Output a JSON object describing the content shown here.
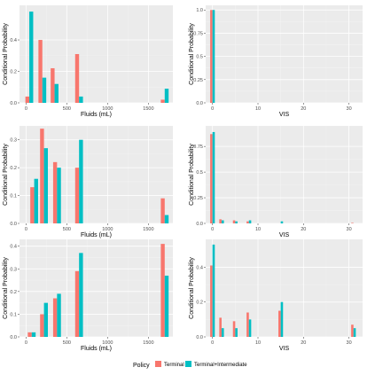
{
  "legend": {
    "title": "Policy",
    "items": [
      {
        "label": "Terminal",
        "color": "#F8766D"
      },
      {
        "label": "Terminal+Intermediate",
        "color": "#00BFC4"
      }
    ],
    "position": "bottom"
  },
  "chart_data": [
    {
      "type": "bar",
      "panel": "row1-left",
      "xlabel": "Fluids (mL)",
      "ylabel": "Conditional Probability",
      "xlim": [
        -80,
        1800
      ],
      "ylim": [
        0,
        0.62
      ],
      "xticks": [
        0,
        500,
        1000,
        1500
      ],
      "yticks": [
        0.0,
        0.2,
        0.4
      ],
      "x": [
        40,
        200,
        350,
        650,
        1700
      ],
      "series": [
        {
          "name": "Terminal",
          "values": [
            0.04,
            0.4,
            0.22,
            0.31,
            0.02
          ]
        },
        {
          "name": "Terminal+Intermediate",
          "values": [
            0.58,
            0.16,
            0.12,
            0.04,
            0.09
          ]
        }
      ],
      "grid": true
    },
    {
      "type": "bar",
      "panel": "row1-right",
      "xlabel": "VIS",
      "ylabel": "Conditional Probability",
      "xlim": [
        -1.5,
        33
      ],
      "ylim": [
        0,
        1.05
      ],
      "xticks": [
        0,
        10,
        20,
        30
      ],
      "yticks": [
        0.0,
        0.25,
        0.5,
        0.75,
        1.0
      ],
      "x": [
        0
      ],
      "series": [
        {
          "name": "Terminal",
          "values": [
            1.0
          ]
        },
        {
          "name": "Terminal+Intermediate",
          "values": [
            1.0
          ]
        }
      ],
      "grid": true
    },
    {
      "type": "bar",
      "panel": "row2-left",
      "xlabel": "Fluids (mL)",
      "ylabel": "Conditional Probability",
      "xlim": [
        -80,
        1800
      ],
      "ylim": [
        0,
        0.35
      ],
      "xticks": [
        0,
        500,
        1000,
        1500
      ],
      "yticks": [
        0.0,
        0.1,
        0.2,
        0.3
      ],
      "x": [
        100,
        220,
        380,
        650,
        1700
      ],
      "series": [
        {
          "name": "Terminal",
          "values": [
            0.13,
            0.34,
            0.22,
            0.2,
            0.09
          ]
        },
        {
          "name": "Terminal+Intermediate",
          "values": [
            0.16,
            0.27,
            0.2,
            0.3,
            0.03
          ]
        }
      ],
      "grid": true
    },
    {
      "type": "bar",
      "panel": "row2-right",
      "xlabel": "VIS",
      "ylabel": "Conditional Probability",
      "xlim": [
        -1.5,
        33
      ],
      "ylim": [
        0,
        0.95
      ],
      "xticks": [
        0,
        10,
        20,
        30
      ],
      "yticks": [
        0.0,
        0.25,
        0.5,
        0.75
      ],
      "x": [
        0,
        2,
        5,
        8,
        15,
        31
      ],
      "series": [
        {
          "name": "Terminal",
          "values": [
            0.87,
            0.04,
            0.03,
            0.02,
            0.0,
            0.005
          ]
        },
        {
          "name": "Terminal+Intermediate",
          "values": [
            0.89,
            0.03,
            0.02,
            0.03,
            0.02,
            0.0
          ]
        }
      ],
      "grid": true
    },
    {
      "type": "bar",
      "panel": "row3-left",
      "xlabel": "Fluids (mL)",
      "ylabel": "Conditional Probability",
      "xlim": [
        -80,
        1800
      ],
      "ylim": [
        0,
        0.43
      ],
      "xticks": [
        0,
        500,
        1000,
        1500
      ],
      "yticks": [
        0.0,
        0.1,
        0.2,
        0.3,
        0.4
      ],
      "x": [
        70,
        220,
        380,
        650,
        1700
      ],
      "series": [
        {
          "name": "Terminal",
          "values": [
            0.02,
            0.1,
            0.17,
            0.29,
            0.41
          ]
        },
        {
          "name": "Terminal+Intermediate",
          "values": [
            0.02,
            0.15,
            0.19,
            0.37,
            0.27
          ]
        }
      ],
      "grid": true
    },
    {
      "type": "bar",
      "panel": "row3-right",
      "xlabel": "VIS",
      "ylabel": "Conditional Probability",
      "xlim": [
        -1.5,
        33
      ],
      "ylim": [
        0,
        0.56
      ],
      "xticks": [
        0,
        10,
        20,
        30
      ],
      "yticks": [
        0.0,
        0.2,
        0.4
      ],
      "x": [
        0,
        2,
        5,
        8,
        15,
        31
      ],
      "series": [
        {
          "name": "Terminal",
          "values": [
            0.41,
            0.11,
            0.09,
            0.14,
            0.15,
            0.07
          ]
        },
        {
          "name": "Terminal+Intermediate",
          "values": [
            0.53,
            0.05,
            0.05,
            0.1,
            0.2,
            0.05
          ]
        }
      ],
      "grid": true
    }
  ]
}
